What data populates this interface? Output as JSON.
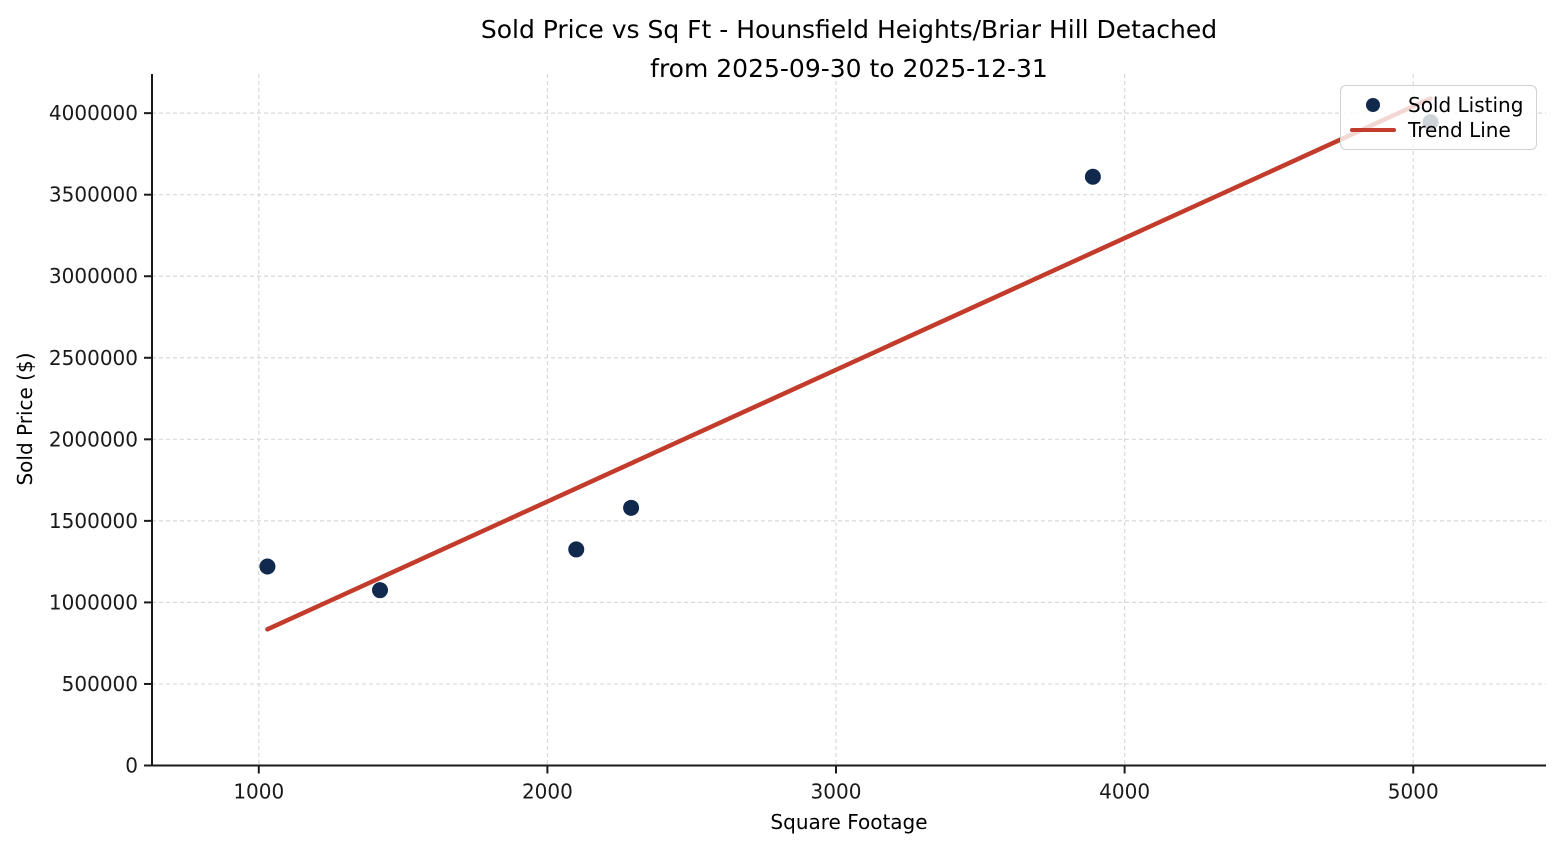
{
  "title": {
    "line1": "Sold Price vs Sq Ft - Hounsfield Heights/Briar Hill Detached",
    "line2": "from 2025-09-30 to 2025-12-31"
  },
  "axes": {
    "xlabel": "Square Footage",
    "ylabel": "Sold Price ($)"
  },
  "legend": {
    "position": "upper right",
    "items": [
      {
        "label": "Sold Listing",
        "swatch": "dot-marker"
      },
      {
        "label": "Trend Line",
        "swatch": "line-marker"
      }
    ]
  },
  "colors": {
    "point": "#10294d",
    "trend": "#c23b2b",
    "grid": "#d9d9d9",
    "axis": "#1a1a1a",
    "tick_label": "#1a1a1a",
    "background": "#ffffff"
  },
  "chart_data": {
    "type": "scatter",
    "title": "Sold Price vs Sq Ft - Hounsfield Heights/Briar Hill Detached from 2025-09-30 to 2025-12-31",
    "xlabel": "Square Footage",
    "ylabel": "Sold Price ($)",
    "xlim": [
      630,
      5460
    ],
    "ylim": [
      0,
      4240000
    ],
    "x_ticks": [
      1000,
      2000,
      3000,
      4000,
      5000
    ],
    "y_ticks": [
      0,
      500000,
      1000000,
      1500000,
      2000000,
      2500000,
      3000000,
      3500000,
      4000000
    ],
    "grid": true,
    "grid_style": "dashed",
    "legend_position": "upper right",
    "series": [
      {
        "name": "Sold Listing",
        "type": "scatter",
        "color": "#10294d",
        "points": [
          [
            1030,
            1220000
          ],
          [
            1420,
            1075000
          ],
          [
            2100,
            1325000
          ],
          [
            2290,
            1580000
          ],
          [
            3890,
            3610000
          ],
          [
            5060,
            3945000
          ]
        ]
      },
      {
        "name": "Trend Line",
        "type": "line",
        "color": "#c23b2b",
        "points": [
          [
            1030,
            835000
          ],
          [
            5060,
            4090000
          ]
        ]
      }
    ]
  }
}
